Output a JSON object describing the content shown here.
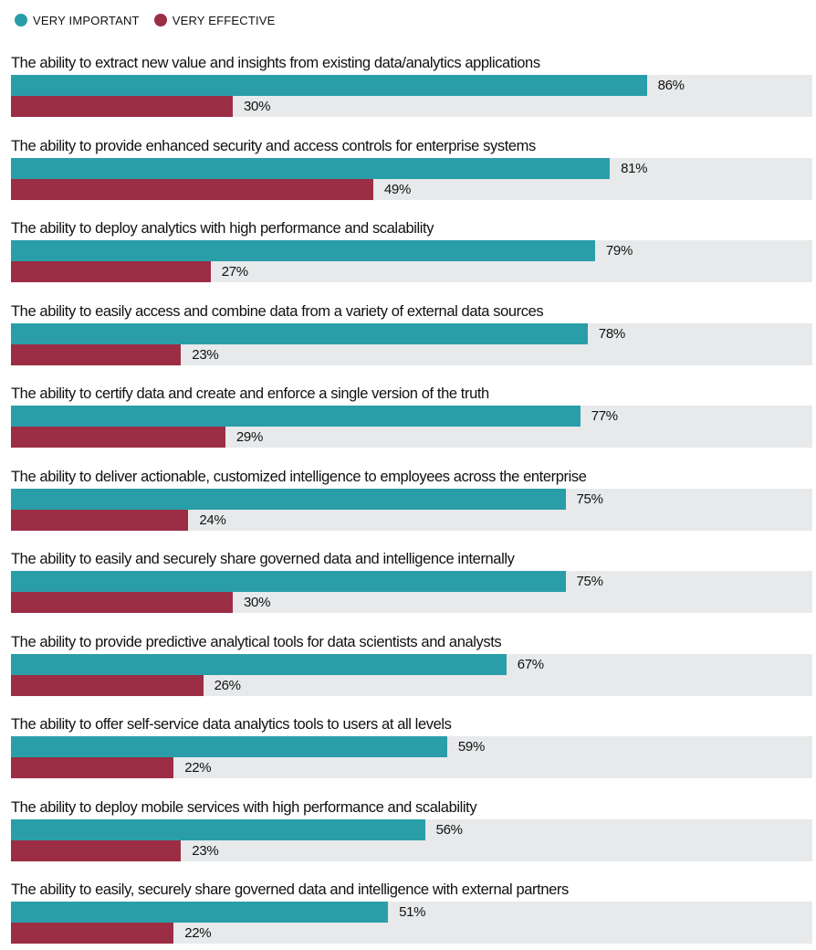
{
  "legend": {
    "items": [
      {
        "label": "VERY IMPORTANT",
        "color": "#2a9ea8"
      },
      {
        "label": "VERY EFFECTIVE",
        "color": "#9b2d45"
      }
    ]
  },
  "chart_data": {
    "type": "bar",
    "orientation": "horizontal",
    "categories": [
      "The ability to extract new value and insights from existing data/analytics applications",
      "The ability to provide enhanced security and access controls for enterprise systems",
      "The ability to deploy analytics with high performance and scalability",
      "The ability to easily access and combine data from a variety of external data sources",
      "The ability to certify data and create and enforce a single version of the truth",
      "The ability to deliver actionable, customized intelligence to employees across the enterprise",
      "The ability to easily and securely share governed data and intelligence internally",
      "The ability to provide predictive analytical tools for data scientists and analysts",
      "The ability to offer self-service data analytics tools to users at all levels",
      "The ability to deploy mobile services with high performance and scalability",
      "The ability to easily, securely share governed data and intelligence with external partners"
    ],
    "series": [
      {
        "name": "VERY IMPORTANT",
        "color": "#2a9ea8",
        "values": [
          86,
          81,
          79,
          78,
          77,
          75,
          75,
          67,
          59,
          56,
          51
        ],
        "labels": [
          "86%",
          "81%",
          "79%",
          "78%",
          "77%",
          "75%",
          "75%",
          "67%",
          "59%",
          "56%",
          "51%"
        ]
      },
      {
        "name": "VERY EFFECTIVE",
        "color": "#9b2d45",
        "values": [
          30,
          49,
          27,
          23,
          29,
          24,
          30,
          26,
          22,
          23,
          22
        ],
        "labels": [
          "30%",
          "49%",
          "27%",
          "23%",
          "29%",
          "24%",
          "30%",
          "26%",
          "22%",
          "23%",
          "22%"
        ]
      }
    ],
    "xlim": [
      0,
      100
    ],
    "unit": "%",
    "grid": false,
    "legend_position": "top-left"
  }
}
